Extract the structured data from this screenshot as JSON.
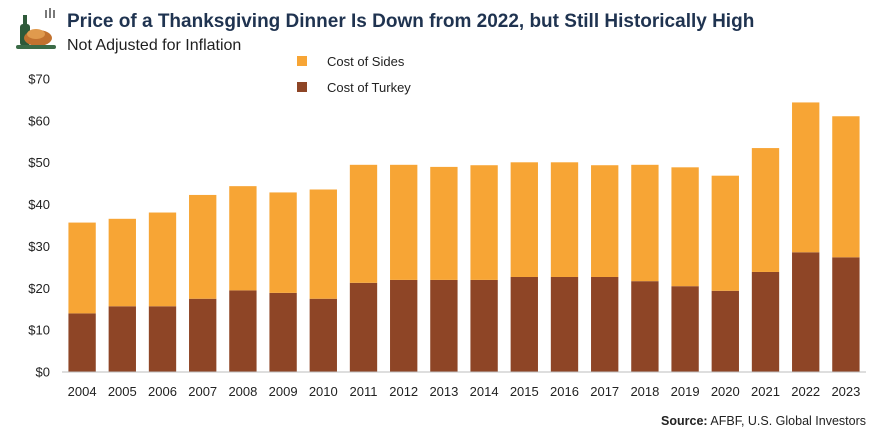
{
  "header": {
    "title": "Price of a Thanksgiving Dinner Is Down from 2022, but Still Historically High",
    "subtitle": "Not Adjusted for Inflation",
    "icon": "turkey-dinner-icon"
  },
  "source": {
    "label": "Source:",
    "text": "AFBF, U.S. Global Investors"
  },
  "colors": {
    "sides": "#f7a535",
    "turkey": "#8e4526",
    "title": "#1f3350",
    "axis": "#bdbdbd"
  },
  "chart_data": {
    "type": "bar",
    "stacked": true,
    "title": "Price of a Thanksgiving Dinner Is Down from 2022, but Still Historically High",
    "subtitle": "Not Adjusted for Inflation",
    "legend_position": "top-center",
    "grid": false,
    "ylim": [
      0,
      70
    ],
    "y_ticks": [
      "$0",
      "$10",
      "$20",
      "$30",
      "$40",
      "$50",
      "$60",
      "$70"
    ],
    "y_tick_values": [
      0,
      10,
      20,
      30,
      40,
      50,
      60,
      70
    ],
    "categories": [
      "2004",
      "2005",
      "2006",
      "2007",
      "2008",
      "2009",
      "2010",
      "2011",
      "2012",
      "2013",
      "2014",
      "2015",
      "2016",
      "2017",
      "2018",
      "2019",
      "2020",
      "2021",
      "2022",
      "2023"
    ],
    "series": [
      {
        "name": "Cost of Turkey",
        "values": [
          14.0,
          15.7,
          15.7,
          17.5,
          19.5,
          18.9,
          17.5,
          21.3,
          22.0,
          22.0,
          22.0,
          22.7,
          22.7,
          22.7,
          21.7,
          20.5,
          19.4,
          23.9,
          28.6,
          27.4
        ]
      },
      {
        "name": "Cost of Sides",
        "values": [
          21.7,
          20.9,
          22.4,
          24.8,
          24.9,
          24.0,
          26.1,
          28.2,
          27.5,
          27.0,
          27.4,
          27.4,
          27.4,
          26.7,
          27.8,
          28.4,
          27.5,
          29.6,
          35.8,
          33.7
        ]
      }
    ]
  }
}
